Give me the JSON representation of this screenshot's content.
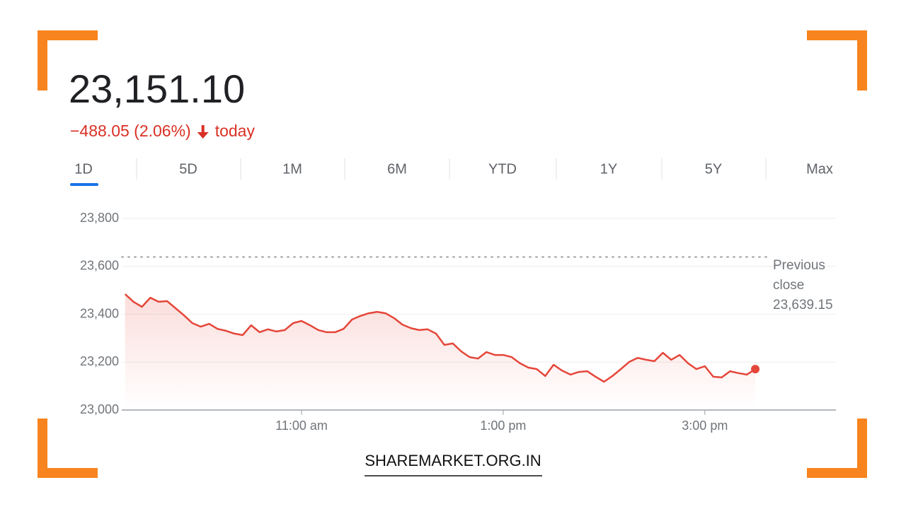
{
  "header": {
    "price": "23,151.10",
    "change": "−488.05 (2.06%)",
    "period": "today"
  },
  "tabs": [
    "1D",
    "5D",
    "1M",
    "6M",
    "YTD",
    "1Y",
    "5Y",
    "Max"
  ],
  "footer": "SHAREMARKET.ORG.IN",
  "chart_data": {
    "type": "line",
    "x": [
      555,
      560,
      565,
      570,
      575,
      580,
      585,
      590,
      595,
      600,
      605,
      610,
      615,
      620,
      625,
      630,
      635,
      640,
      645,
      650,
      655,
      660,
      665,
      670,
      675,
      680,
      685,
      690,
      695,
      700,
      705,
      710,
      715,
      720,
      725,
      730,
      735,
      740,
      745,
      750,
      755,
      760,
      765,
      770,
      775,
      780,
      785,
      790,
      795,
      800,
      805,
      810,
      815,
      820,
      825,
      830,
      835,
      840,
      845,
      850,
      855,
      860,
      865,
      870,
      875,
      880,
      885,
      890,
      895,
      900,
      905,
      910,
      915,
      920,
      925,
      930
    ],
    "series": [
      {
        "name": "Price",
        "color": "#e5463a",
        "values": [
          23484,
          23452,
          23431,
          23469,
          23452,
          23455,
          23425,
          23396,
          23363,
          23348,
          23360,
          23339,
          23331,
          23319,
          23313,
          23354,
          23325,
          23337,
          23328,
          23334,
          23363,
          23372,
          23354,
          23334,
          23325,
          23325,
          23339,
          23378,
          23393,
          23404,
          23410,
          23404,
          23384,
          23357,
          23342,
          23334,
          23337,
          23319,
          23272,
          23278,
          23245,
          23221,
          23215,
          23242,
          23230,
          23230,
          23221,
          23195,
          23177,
          23171,
          23142,
          23189,
          23165,
          23148,
          23159,
          23162,
          23139,
          23118,
          23142,
          23171,
          23201,
          23218,
          23210,
          23204,
          23239,
          23210,
          23230,
          23195,
          23171,
          23183,
          23139,
          23136,
          23162,
          23154,
          23148,
          23171
        ]
      }
    ],
    "xlim": [
      553,
      978
    ],
    "xticks": [
      {
        "value": 660,
        "label": "11:00 am"
      },
      {
        "value": 780,
        "label": "1:00 pm"
      },
      {
        "value": 900,
        "label": "3:00 pm"
      }
    ],
    "ylim": [
      23000,
      23800
    ],
    "yticks": [
      {
        "value": 23000,
        "label": "23,000"
      },
      {
        "value": 23200,
        "label": "23,200"
      },
      {
        "value": 23400,
        "label": "23,400"
      },
      {
        "value": 23600,
        "label": "23,600"
      },
      {
        "value": 23800,
        "label": "23,800"
      }
    ],
    "grid": true,
    "previous_close": {
      "label": "Previous close",
      "value": 23639.15,
      "value_label": "23,639.15"
    }
  }
}
